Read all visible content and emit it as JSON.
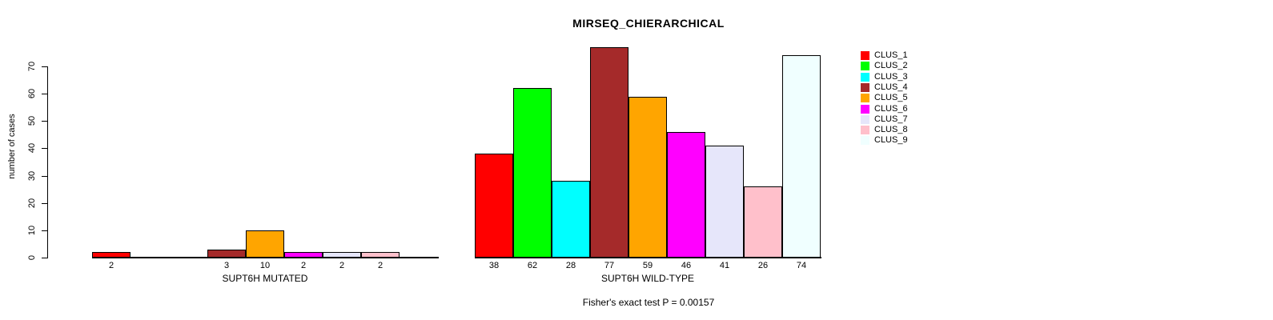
{
  "chart_data": {
    "type": "bar",
    "title": "MIRSEQ_CHIERARCHICAL",
    "ylabel": "number of cases",
    "xlabel": "",
    "footer": "Fisher's exact test P = 0.00157",
    "ylim": [
      0,
      70
    ],
    "yticks": [
      0,
      10,
      20,
      30,
      40,
      50,
      60,
      70
    ],
    "grid": false,
    "value_labels_shown_for_nonzero_bars": true,
    "legend": {
      "position": "right",
      "entries": [
        {
          "label": "CLUS_1",
          "color": "#FF0000"
        },
        {
          "label": "CLUS_2",
          "color": "#00FF00"
        },
        {
          "label": "CLUS_3",
          "color": "#00FFFF"
        },
        {
          "label": "CLUS_4",
          "color": "#A52A2A"
        },
        {
          "label": "CLUS_5",
          "color": "#FFA500"
        },
        {
          "label": "CLUS_6",
          "color": "#FF00FF"
        },
        {
          "label": "CLUS_7",
          "color": "#E6E6FA"
        },
        {
          "label": "CLUS_8",
          "color": "#FFC0CB"
        },
        {
          "label": "CLUS_9",
          "color": "#F0FFFF"
        }
      ]
    },
    "groups": [
      {
        "label": "SUPT6H MUTATED",
        "values": [
          2,
          0,
          0,
          3,
          10,
          2,
          2,
          2,
          0
        ]
      },
      {
        "label": "SUPT6H WILD-TYPE",
        "values": [
          38,
          62,
          28,
          77,
          59,
          46,
          41,
          26,
          74
        ]
      }
    ],
    "axis_color": "#000000",
    "background_color": "#FFFFFF"
  }
}
